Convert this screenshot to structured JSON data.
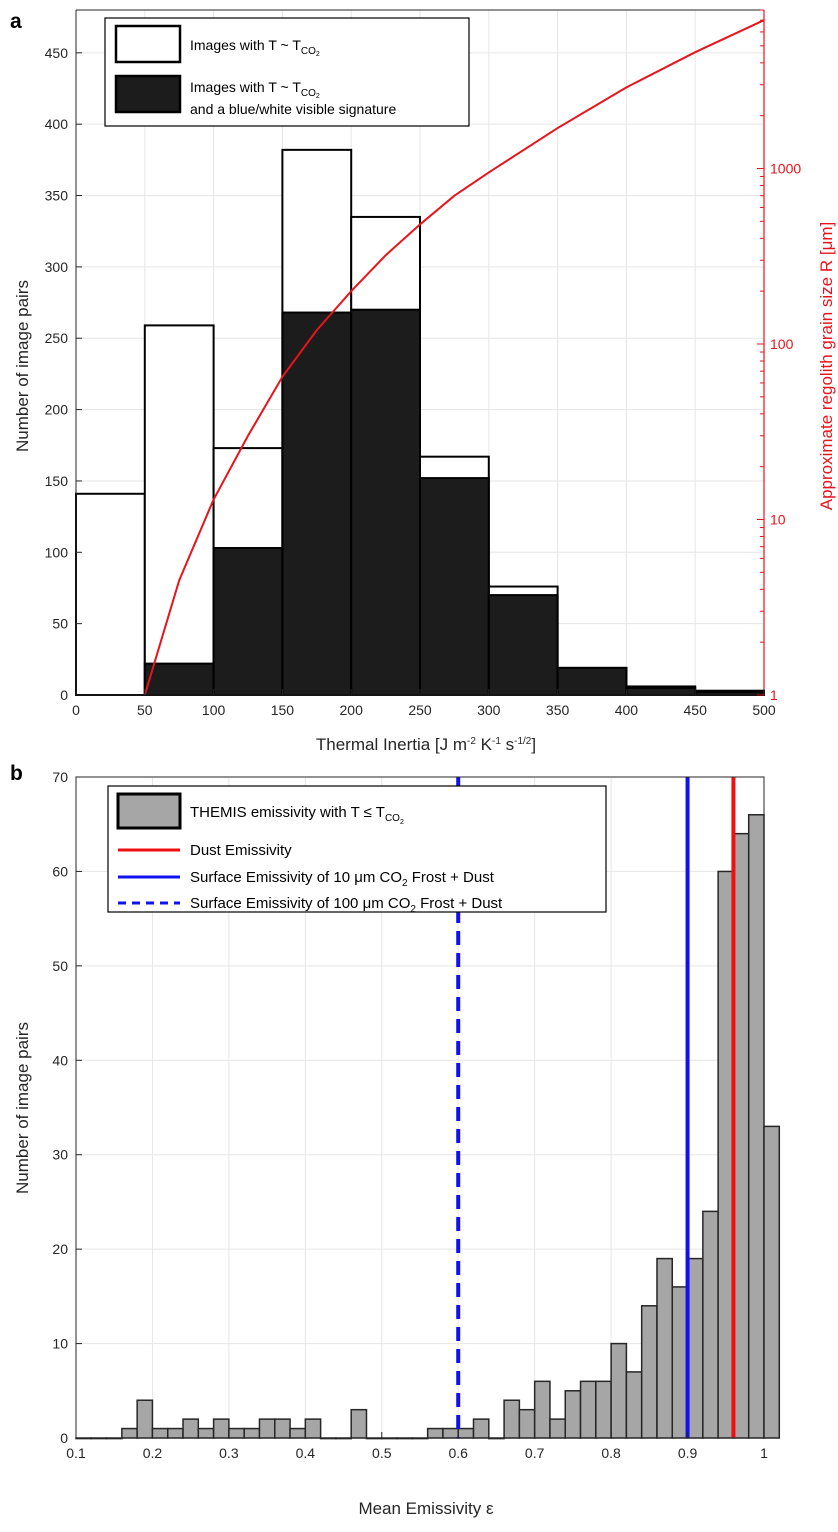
{
  "figure": {
    "panels": [
      {
        "letter": "a",
        "legend": [
          {
            "text": "Images with T ~ T",
            "sub": "CO",
            "sub2": "2"
          },
          {
            "text": "Images with T ~ T",
            "sub": "CO",
            "sub2": "2",
            "line2": "and a blue/white visible signature"
          }
        ],
        "xlabel": {
          "main": "Thermal Inertia [J m",
          "s1": "-2",
          "t1": " K",
          "s2": "-1",
          "t2": " s",
          "s3": "-1/2",
          "t3": "]"
        }
      },
      {
        "letter": "b",
        "legend": [
          {
            "text": "THEMIS emissivity with T ≤ T",
            "sub": "CO",
            "sub2": "2"
          },
          {
            "text": "Dust Emissivity"
          },
          {
            "text": "Surface Emissivity of 10 μm CO",
            "sub": "2",
            "tail": " Frost + Dust"
          },
          {
            "text": "Surface Emissivity of 100 μm CO",
            "sub": "2",
            "tail": " Frost + Dust"
          }
        ]
      }
    ]
  },
  "chart_data": [
    {
      "type": "bar",
      "xlabel": "Thermal Inertia [J m-2 K-1 s-1/2]",
      "ylabel": "Number of image pairs",
      "ylabel_right": "Approximate regolith grain size R [μm]",
      "xlim": [
        0,
        500
      ],
      "ylim": [
        0,
        480
      ],
      "xticks": [
        0,
        50,
        100,
        150,
        200,
        250,
        300,
        350,
        400,
        450,
        500
      ],
      "yticks": [
        0,
        50,
        100,
        150,
        200,
        250,
        300,
        350,
        400,
        450
      ],
      "yticks_right": [
        1,
        10,
        100,
        1000
      ],
      "yscale_right": "log",
      "ylim_right": [
        1,
        8000
      ],
      "grid": true,
      "legend_position": "top-left",
      "bin_edges": [
        0,
        50,
        100,
        150,
        200,
        250,
        300,
        350,
        400,
        450,
        500
      ],
      "series": [
        {
          "name": "Images with T ~ TCO2",
          "values": [
            141,
            259,
            173,
            382,
            335,
            167,
            76,
            19,
            6,
            3
          ],
          "color": "#ffffff",
          "edge": "#000000"
        },
        {
          "name": "Images with T ~ TCO2 and a blue/white visible signature",
          "values": [
            0,
            22,
            103,
            268,
            270,
            152,
            70,
            19,
            5,
            2
          ],
          "color": "#1c1c1c",
          "edge": "#000000"
        }
      ],
      "curve": {
        "axis": "right",
        "color": "#e8141b",
        "x": [
          50,
          75,
          100,
          125,
          150,
          175,
          200,
          225,
          250,
          275,
          300,
          350,
          400,
          450,
          500
        ],
        "y": [
          1,
          4.5,
          13,
          30,
          65,
          120,
          200,
          320,
          480,
          700,
          950,
          1700,
          2900,
          4600,
          7000
        ]
      }
    },
    {
      "type": "bar",
      "xlabel": "Mean Emissivity ε",
      "ylabel": "Number of image pairs",
      "xlim": [
        0.1,
        1
      ],
      "ylim": [
        0,
        70
      ],
      "xticks": [
        0.1,
        0.2,
        0.3,
        0.4,
        0.5,
        0.6,
        0.7,
        0.8,
        0.9,
        1
      ],
      "yticks": [
        0,
        10,
        20,
        30,
        40,
        50,
        60,
        70
      ],
      "grid": true,
      "legend_position": "top-left",
      "bin_width": 0.02,
      "bin_start": 0.1,
      "series": [
        {
          "name": "THEMIS emissivity with T ≤ TCO2",
          "color": "#a6a6a6",
          "edge": "#262626",
          "values": [
            0,
            0,
            0,
            1,
            4,
            1,
            1,
            2,
            1,
            2,
            1,
            1,
            2,
            2,
            1,
            2,
            0,
            0,
            3,
            0,
            0,
            0,
            0,
            1,
            1,
            1,
            2,
            0,
            4,
            3,
            6,
            2,
            5,
            6,
            6,
            10,
            7,
            14,
            19,
            16,
            19,
            24,
            60,
            64,
            66,
            33
          ]
        }
      ],
      "vlines": [
        {
          "name": "Dust Emissivity",
          "x": 0.96,
          "color": "#f01010",
          "style": "solid"
        },
        {
          "name": "Surface Emissivity of 10 μm CO2 Frost + Dust",
          "x": 0.9,
          "color": "#1010f0",
          "style": "solid"
        },
        {
          "name": "Surface Emissivity of 100 μm CO2 Frost + Dust",
          "x": 0.6,
          "color": "#1010f0",
          "style": "dashed"
        }
      ]
    }
  ]
}
